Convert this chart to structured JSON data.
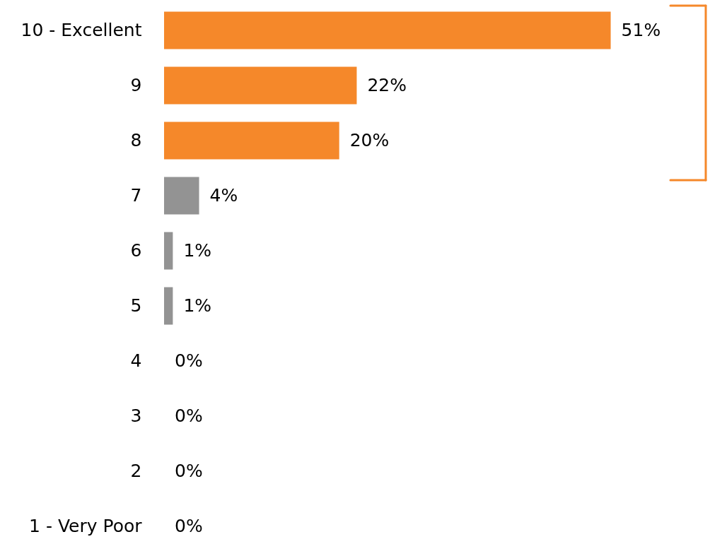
{
  "chart_data": {
    "type": "bar",
    "orientation": "horizontal",
    "categories": [
      "10 - Excellent",
      "9",
      "8",
      "7",
      "6",
      "5",
      "4",
      "3",
      "2",
      "1 - Very Poor"
    ],
    "values": [
      51,
      22,
      20,
      4,
      1,
      1,
      0,
      0,
      0,
      0
    ],
    "colors": [
      "#f5882a",
      "#f5882a",
      "#f5882a",
      "#939393",
      "#939393",
      "#939393",
      "#939393",
      "#939393",
      "#939393",
      "#939393"
    ],
    "value_labels": [
      "51%",
      "22%",
      "20%",
      "4%",
      "1%",
      "1%",
      "0%",
      "0%",
      "0%",
      "0%"
    ],
    "grid": false
  }
}
